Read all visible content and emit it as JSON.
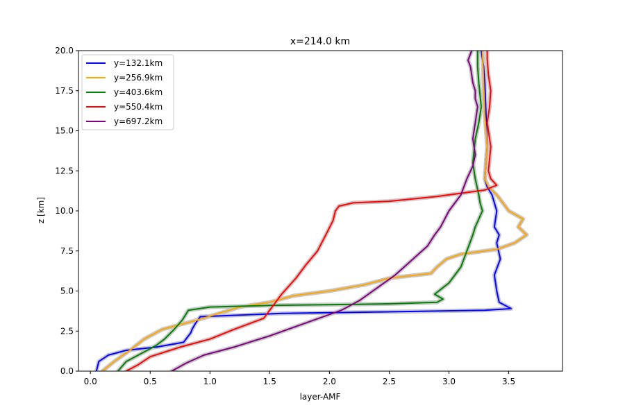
{
  "chart_data": {
    "type": "line",
    "title": "x=214.0 km",
    "xlabel": "layer-AMF",
    "ylabel": "z [km]",
    "xlim": [
      -0.1,
      3.95
    ],
    "ylim": [
      0,
      20
    ],
    "xticks": [
      "0.0",
      "0.5",
      "1.0",
      "1.5",
      "2.0",
      "2.5",
      "3.0",
      "3.5"
    ],
    "yticks": [
      "0.0",
      "2.5",
      "5.0",
      "7.5",
      "10.0",
      "12.5",
      "15.0",
      "17.5",
      "20.0"
    ],
    "grid": false,
    "legend_position": "top-left",
    "series": [
      {
        "name": "y=132.1km",
        "color": "#0000ff",
        "x": [
          0.05,
          0.07,
          0.15,
          0.3,
          0.55,
          0.78,
          0.84,
          0.85,
          0.88,
          0.92,
          1.6,
          2.5,
          3.3,
          3.52,
          3.42,
          3.4,
          3.38,
          3.43,
          3.4,
          3.42,
          3.38,
          3.4,
          3.36,
          3.32,
          3.3,
          3.32,
          3.31,
          3.3,
          3.29,
          3.27
        ],
        "y": [
          0,
          0.6,
          1.0,
          1.3,
          1.5,
          1.8,
          2.4,
          2.6,
          3.0,
          3.4,
          3.6,
          3.7,
          3.8,
          3.9,
          4.3,
          5.0,
          6.0,
          7.0,
          8.0,
          8.5,
          9.0,
          10.0,
          11.0,
          11.5,
          12.0,
          14.0,
          16.0,
          18.0,
          19.0,
          20.0
        ]
      },
      {
        "name": "y=256.9km",
        "color": "#ffa500",
        "x": [
          0.1,
          0.2,
          0.33,
          0.45,
          0.6,
          0.9,
          1.25,
          1.5,
          1.7,
          2.0,
          2.3,
          2.5,
          2.85,
          2.9,
          2.98,
          3.1,
          3.4,
          3.55,
          3.65,
          3.58,
          3.62,
          3.5,
          3.45,
          3.4,
          3.33,
          3.3,
          3.32,
          3.3,
          3.29,
          3.28
        ],
        "y": [
          0,
          0.6,
          1.3,
          2.0,
          2.6,
          3.2,
          4.0,
          4.3,
          4.7,
          5.0,
          5.4,
          5.8,
          6.1,
          6.5,
          7.0,
          7.3,
          7.6,
          8.0,
          8.5,
          9.0,
          9.5,
          10.0,
          10.5,
          11.0,
          11.5,
          12.0,
          14.0,
          16.0,
          18.0,
          20.0
        ]
      },
      {
        "name": "y=403.6km",
        "color": "#008000",
        "x": [
          0.23,
          0.3,
          0.45,
          0.55,
          0.62,
          0.7,
          0.77,
          0.82,
          1.0,
          1.5,
          2.5,
          2.9,
          2.95,
          2.88,
          3.0,
          3.1,
          3.15,
          3.2,
          3.22,
          3.28,
          3.26,
          3.25,
          3.22,
          3.2,
          3.22,
          3.25,
          3.27,
          3.25,
          3.24,
          3.24
        ],
        "y": [
          0,
          0.6,
          1.2,
          1.6,
          2.0,
          2.6,
          3.2,
          3.8,
          4.0,
          4.1,
          4.2,
          4.3,
          4.5,
          4.8,
          5.5,
          6.5,
          7.5,
          8.5,
          9.0,
          10.0,
          10.5,
          11.0,
          12.0,
          13.0,
          14.5,
          15.5,
          16.5,
          18.0,
          19.0,
          20.0
        ]
      },
      {
        "name": "y=550.4km",
        "color": "#ff0000",
        "x": [
          0.3,
          0.4,
          0.5,
          0.75,
          1.0,
          1.2,
          1.45,
          1.52,
          1.6,
          1.72,
          1.8,
          1.9,
          1.97,
          2.03,
          2.05,
          2.08,
          2.2,
          2.5,
          2.9,
          3.3,
          3.4,
          3.35,
          3.33,
          3.35,
          3.32,
          3.34,
          3.35,
          3.33,
          3.32,
          3.32
        ],
        "y": [
          0,
          0.4,
          0.9,
          1.5,
          2.0,
          2.6,
          3.3,
          4.0,
          4.8,
          5.8,
          6.6,
          7.5,
          8.5,
          9.4,
          10.0,
          10.3,
          10.5,
          10.6,
          10.9,
          11.3,
          11.6,
          12.0,
          12.5,
          14.0,
          15.5,
          16.5,
          17.5,
          18.5,
          19.5,
          20.0
        ]
      },
      {
        "name": "y=697.2km",
        "color": "#800080",
        "x": [
          0.68,
          0.8,
          0.95,
          1.2,
          1.5,
          1.8,
          2.1,
          2.25,
          2.4,
          2.55,
          2.7,
          2.82,
          2.88,
          2.93,
          3.0,
          3.1,
          3.15,
          3.2,
          3.22,
          3.2,
          3.22,
          3.24,
          3.22,
          3.22,
          3.2,
          3.19,
          3.18,
          3.16,
          3.18,
          3.19
        ],
        "y": [
          0,
          0.5,
          1.0,
          1.5,
          2.2,
          3.0,
          3.8,
          4.4,
          5.2,
          6.0,
          7.0,
          7.8,
          8.5,
          9.0,
          10.0,
          11.0,
          12.0,
          12.8,
          13.5,
          14.5,
          15.5,
          16.5,
          17.0,
          17.5,
          18.0,
          18.5,
          19.0,
          19.4,
          19.8,
          20.0
        ]
      }
    ]
  }
}
